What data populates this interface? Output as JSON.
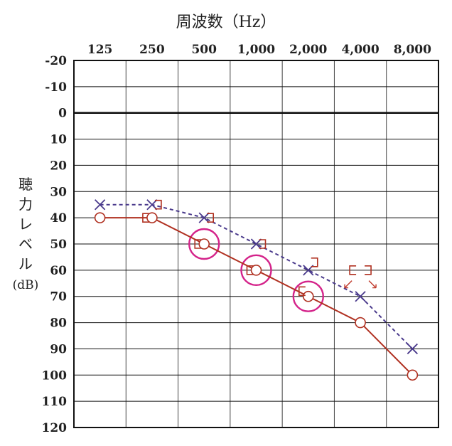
{
  "chart_data": {
    "type": "line",
    "title": "周波数（Hz）",
    "ylabel": [
      "聴",
      "力",
      "レ",
      "ベ",
      "ル",
      "(dB)"
    ],
    "categories": [
      "125",
      "250",
      "500",
      "1,000",
      "2,000",
      "4,000",
      "8,000"
    ],
    "y_ticks": [
      "-20",
      "-10",
      "0",
      "10",
      "20",
      "30",
      "40",
      "50",
      "60",
      "70",
      "80",
      "90",
      "100",
      "110",
      "120"
    ],
    "ylim": [
      -20,
      120
    ],
    "y_inverted": true,
    "grid": true,
    "series": [
      {
        "marker": "circle",
        "line": "solid",
        "color": "#b03020",
        "values": [
          40,
          40,
          50,
          60,
          70,
          80,
          100
        ]
      },
      {
        "marker": "cross",
        "line": "dashed",
        "color": "#4a3a8c",
        "values": [
          35,
          35,
          40,
          50,
          60,
          70,
          90
        ]
      }
    ],
    "bone_right": {
      "marker": "bracket-right",
      "color": "#b03020",
      "x_index": [
        1,
        2,
        3,
        4,
        5
      ],
      "values": [
        35,
        40,
        50,
        57,
        60
      ]
    },
    "bone_left": {
      "marker": "bracket-left",
      "color": "#b03020",
      "x_index": [
        1,
        2,
        3,
        4,
        5
      ],
      "values": [
        40,
        50,
        60,
        68,
        60
      ]
    },
    "highlights": {
      "color": "#d4238a",
      "x_index": [
        2,
        3,
        4
      ],
      "values": [
        50,
        60,
        70
      ]
    },
    "scaleout_arrows": {
      "color": "#c0392b",
      "x_index": [
        5,
        5
      ],
      "direction": [
        "down-left",
        "down-right"
      ]
    }
  }
}
